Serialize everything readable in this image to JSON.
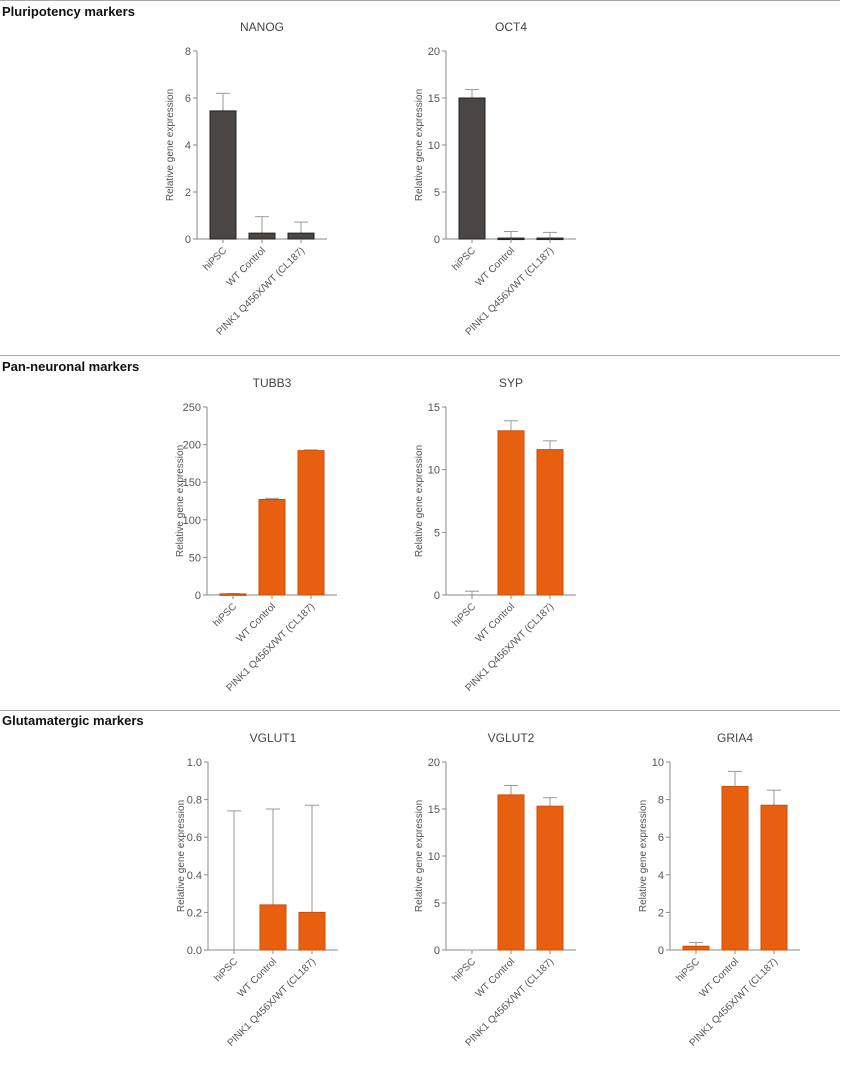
{
  "sections": [
    {
      "title": "Pluripotency markers"
    },
    {
      "title": "Pan-neuronal markers"
    },
    {
      "title": "Glutamatergic markers"
    }
  ],
  "colors": {
    "pluripotency": "#4a4643",
    "neuronal": "#e8600f",
    "axis": "#8a8a8a"
  },
  "chart_data": [
    {
      "type": "bar",
      "title": "NANOG",
      "ylabel": "Relative gene expression",
      "categories": [
        "hiPSC",
        "WT Control",
        "PINK1 Q456X/WT (CL187)"
      ],
      "values": [
        5.45,
        0.25,
        0.25
      ],
      "error_upper": [
        0.75,
        0.7,
        0.47
      ],
      "ylim": [
        0,
        8
      ],
      "yticks": [
        "0",
        "2",
        "4",
        "6",
        "8"
      ],
      "color": "#4a4643",
      "section": 0,
      "col": 0
    },
    {
      "type": "bar",
      "title": "OCT4",
      "ylabel": "Relative gene expression",
      "categories": [
        "hiPSC",
        "WT Control",
        "PINK1 Q456X/WT (CL187)"
      ],
      "values": [
        15.0,
        0.1,
        0.1
      ],
      "error_upper": [
        0.9,
        0.7,
        0.6
      ],
      "ylim": [
        0,
        20
      ],
      "yticks": [
        "0",
        "5",
        "10",
        "15",
        "20"
      ],
      "color": "#4a4643",
      "section": 0,
      "col": 1
    },
    {
      "type": "bar",
      "title": "TUBB3",
      "ylabel": "Relative gene expression",
      "categories": [
        "hiPSC",
        "WT Control",
        "PINK1 Q456X/WT (CL187)"
      ],
      "values": [
        1.5,
        127,
        192
      ],
      "error_upper": [
        0.5,
        1.5,
        1
      ],
      "ylim": [
        0,
        250
      ],
      "yticks": [
        "0",
        "50",
        "100",
        "150",
        "200",
        "250"
      ],
      "color": "#e8600f",
      "section": 1,
      "col": 0
    },
    {
      "type": "bar",
      "title": "SYP",
      "ylabel": "Relative gene expression",
      "categories": [
        "hiPSC",
        "WT Control",
        "PINK1 Q456X/WT (CL187)"
      ],
      "values": [
        0,
        13.1,
        11.6
      ],
      "error_upper": [
        0.3,
        0.8,
        0.7
      ],
      "ylim": [
        0,
        15
      ],
      "yticks": [
        "0",
        "5",
        "10",
        "15"
      ],
      "color": "#e8600f",
      "section": 1,
      "col": 1
    },
    {
      "type": "bar",
      "title": "VGLUT1",
      "ylabel": "Relative gene expression",
      "categories": [
        "hiPSC",
        "WT Control",
        "PINK1 Q456X/WT (CL187)"
      ],
      "values": [
        0,
        0.24,
        0.2
      ],
      "error_upper": [
        0.74,
        0.51,
        0.57
      ],
      "ylim": [
        0,
        1
      ],
      "yticks": [
        "0.0",
        "0.2",
        "0.4",
        "0.6",
        "0.8",
        "1.0"
      ],
      "color": "#e8600f",
      "section": 2,
      "col": 0
    },
    {
      "type": "bar",
      "title": "VGLUT2",
      "ylabel": "Relative gene expression",
      "categories": [
        "hiPSC",
        "WT Control",
        "PINK1 Q456X/WT (CL187)"
      ],
      "values": [
        0,
        16.5,
        15.3
      ],
      "error_upper": [
        0,
        1.0,
        0.9
      ],
      "ylim": [
        0,
        20
      ],
      "yticks": [
        "0",
        "5",
        "10",
        "15",
        "20"
      ],
      "color": "#e8600f",
      "section": 2,
      "col": 1
    },
    {
      "type": "bar",
      "title": "GRIA4",
      "ylabel": "Relative gene expression",
      "categories": [
        "hiPSC",
        "WT Control",
        "PINK1 Q456X/WT (CL187)"
      ],
      "values": [
        0.2,
        8.7,
        7.7
      ],
      "error_upper": [
        0.2,
        0.8,
        0.8
      ],
      "ylim": [
        0,
        10
      ],
      "yticks": [
        "0",
        "2",
        "4",
        "6",
        "8",
        "10"
      ],
      "color": "#e8600f",
      "section": 2,
      "col": 2
    }
  ]
}
